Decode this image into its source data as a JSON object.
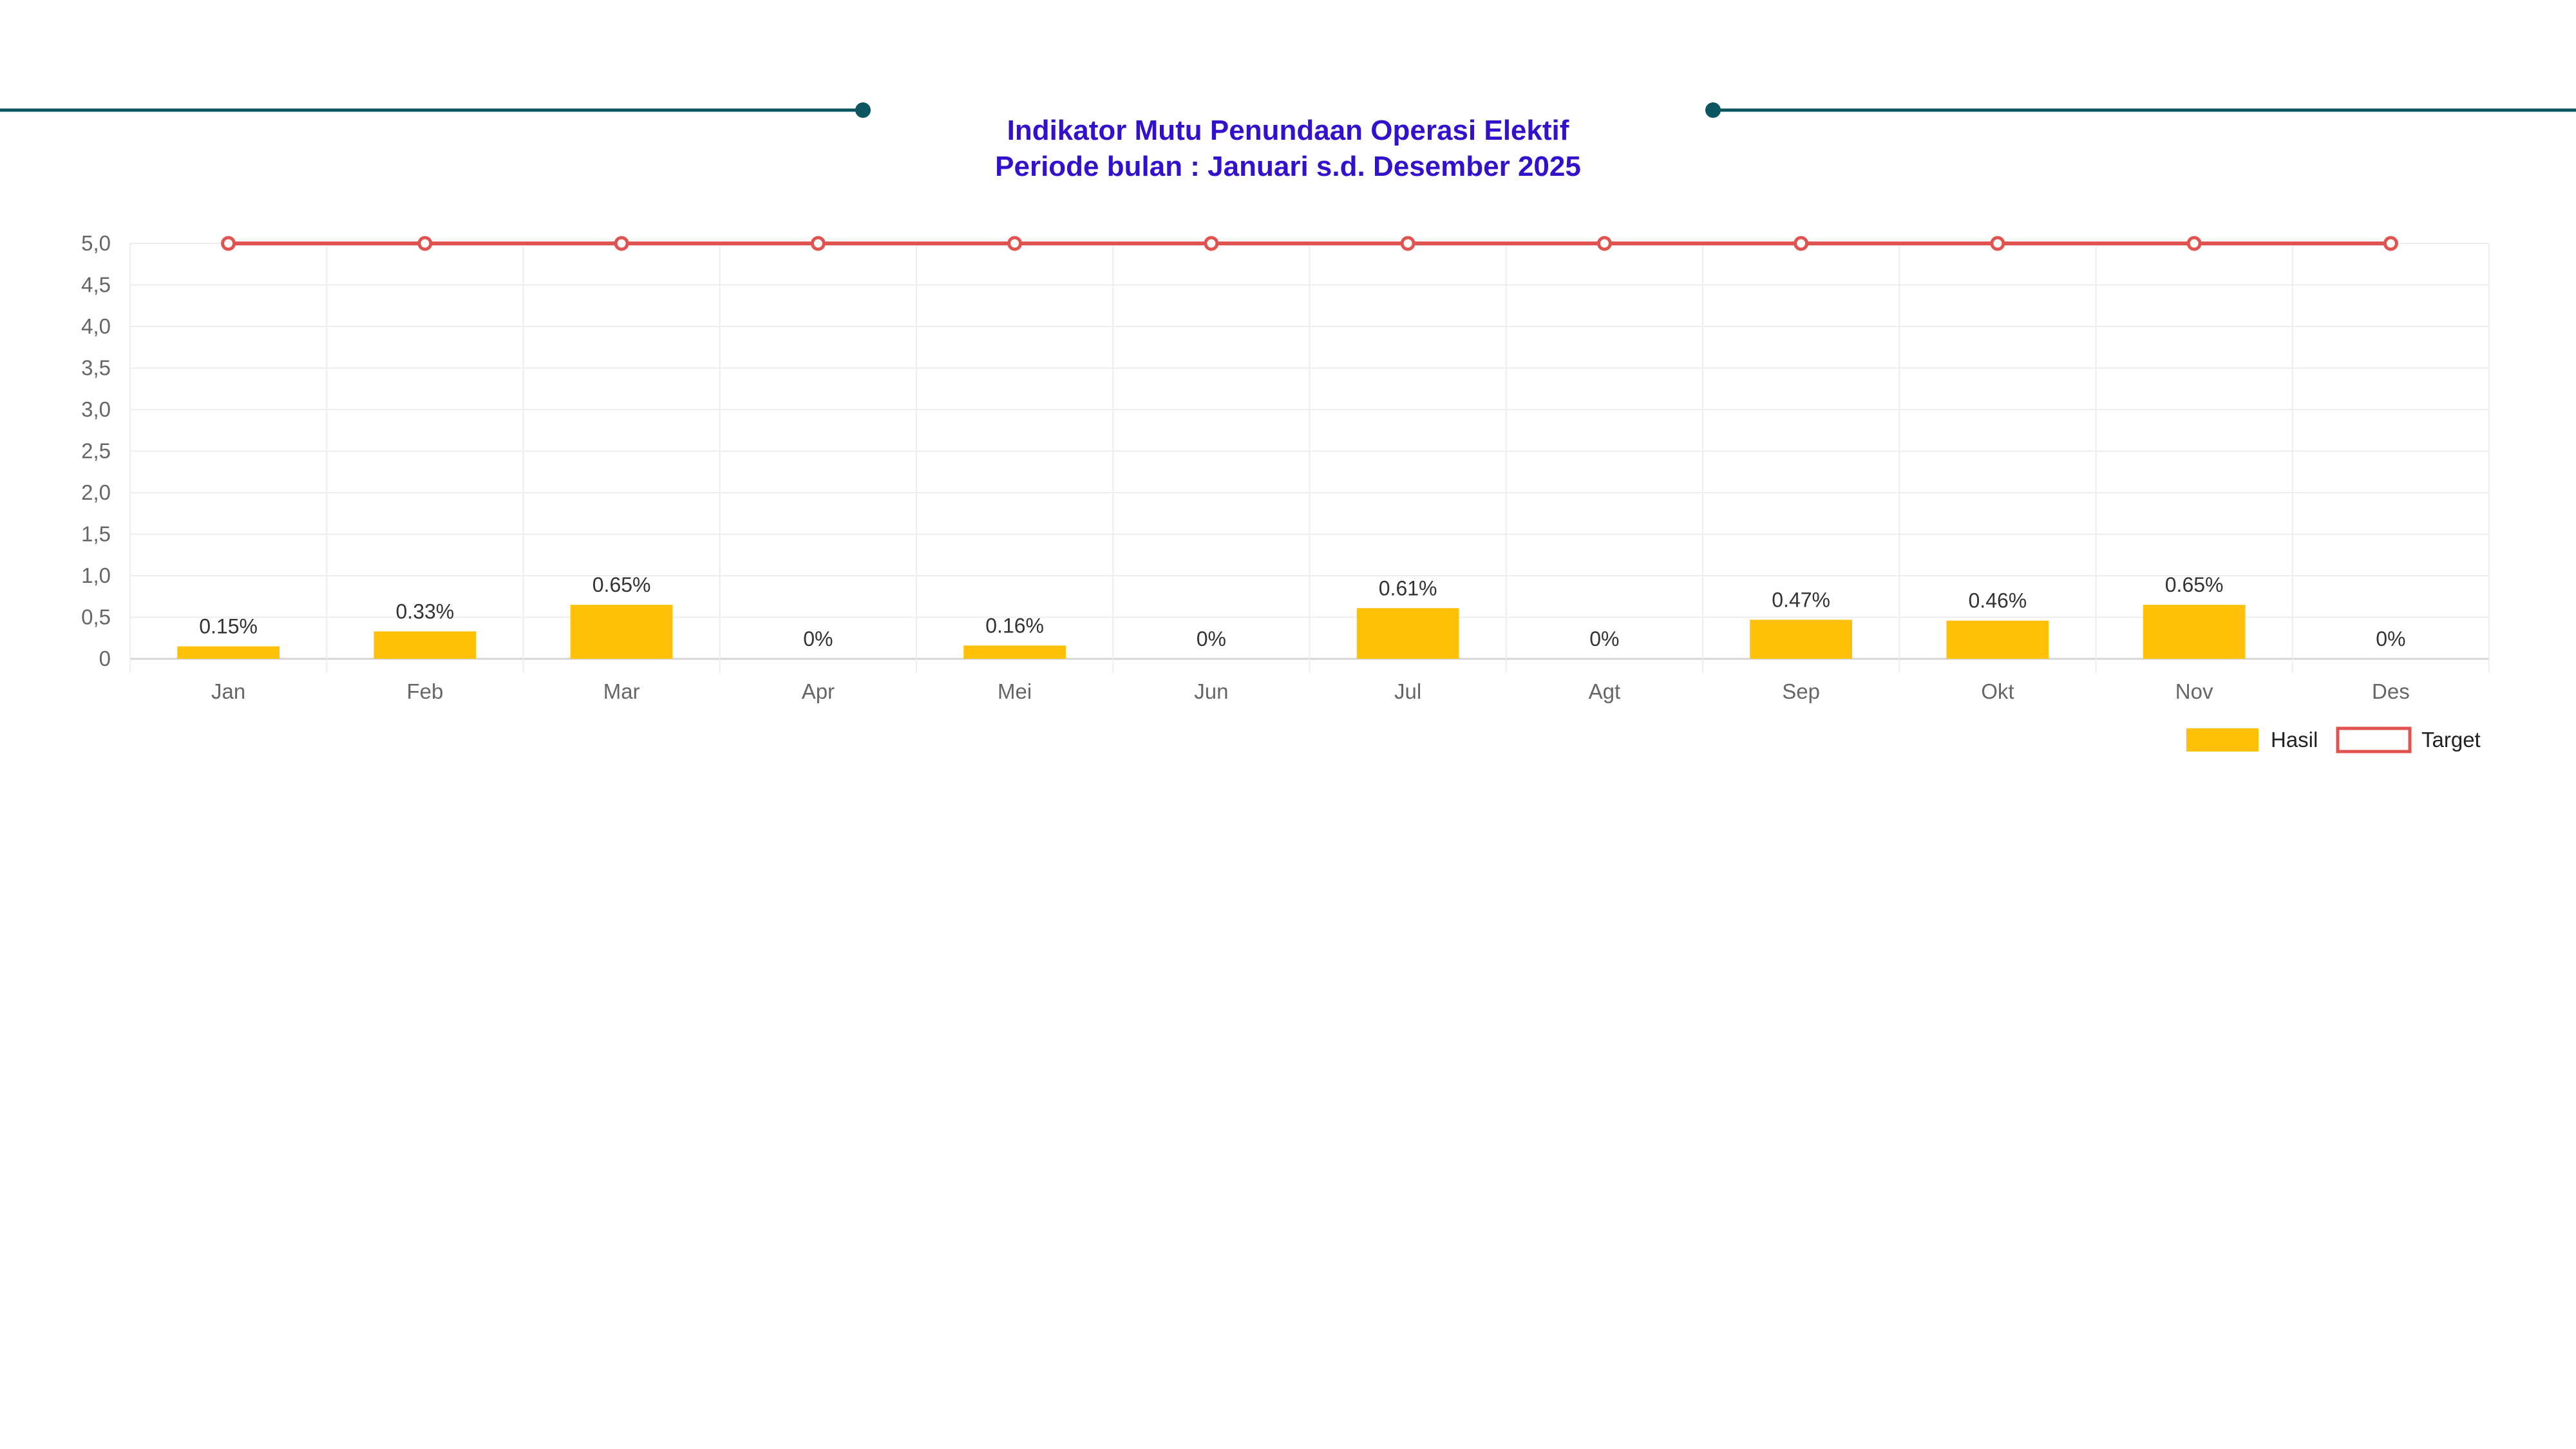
{
  "header": {
    "title_line1": "Indikator Mutu Penundaan Operasi Elektif",
    "title_line2": "Periode bulan : Januari s.d. Desember 2025"
  },
  "colors": {
    "title": "#3311cc",
    "accent_line": "#0b5560",
    "bar": "#ffc107",
    "target": "#e0534f",
    "grid": "#eeeeee",
    "axis_text": "#666666"
  },
  "chart_data": {
    "type": "bar",
    "title": "Indikator Mutu Penundaan Operasi Elektif\nPeriode bulan : Januari s.d. Desember 2025",
    "categories": [
      "Jan",
      "Feb",
      "Mar",
      "Apr",
      "Mei",
      "Jun",
      "Jul",
      "Agt",
      "Sep",
      "Okt",
      "Nov",
      "Des"
    ],
    "series": [
      {
        "name": "Hasil",
        "type": "bar",
        "values": [
          0.15,
          0.33,
          0.65,
          0,
          0.16,
          0,
          0.61,
          0,
          0.47,
          0.46,
          0.65,
          0
        ],
        "labels": [
          "0.15%",
          "0.33%",
          "0.65%",
          "0%",
          "0.16%",
          "0%",
          "0.61%",
          "0%",
          "0.47%",
          "0.46%",
          "0.65%",
          "0%"
        ]
      },
      {
        "name": "Target",
        "type": "line",
        "values": [
          5,
          5,
          5,
          5,
          5,
          5,
          5,
          5,
          5,
          5,
          5,
          5
        ]
      }
    ],
    "xlabel": "",
    "ylabel": "",
    "ylim": [
      0,
      5
    ],
    "yticks": [
      "0",
      "0,5",
      "1,0",
      "1,5",
      "2,0",
      "2,5",
      "3,0",
      "3,5",
      "4,0",
      "4,5",
      "5,0"
    ],
    "grid": true,
    "legend_position": "bottom-right"
  }
}
